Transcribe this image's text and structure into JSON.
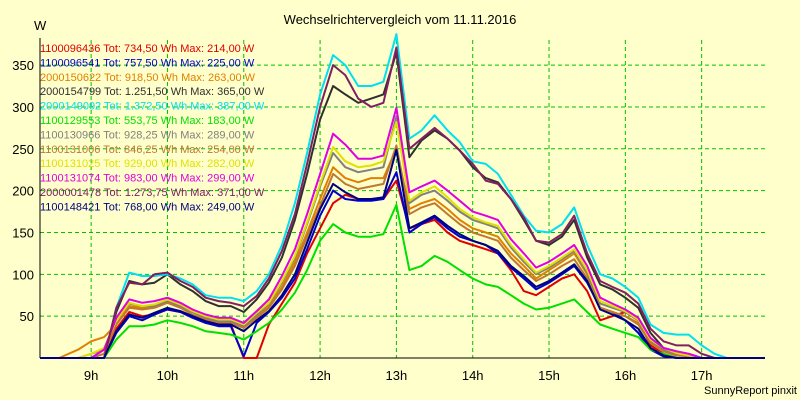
{
  "chart_data": {
    "type": "line",
    "title": "Wechselrichtervergleich vom 11.11.2016",
    "ylabel": "W",
    "footer": "SunnyReport pinxit",
    "ylim": [
      0,
      380
    ],
    "xlim": [
      8.33,
      17.83
    ],
    "grid": true,
    "legend_position": "top-left",
    "x_ticks": [
      {
        "value": 9,
        "label": "9h"
      },
      {
        "value": 10,
        "label": "10h"
      },
      {
        "value": 11,
        "label": "11h"
      },
      {
        "value": 12,
        "label": "12h"
      },
      {
        "value": 13,
        "label": "13h"
      },
      {
        "value": 14,
        "label": "14h"
      },
      {
        "value": 15,
        "label": "15h"
      },
      {
        "value": 16,
        "label": "16h"
      },
      {
        "value": 17,
        "label": "17h"
      }
    ],
    "y_ticks": [
      {
        "value": 50,
        "label": "50"
      },
      {
        "value": 100,
        "label": "100"
      },
      {
        "value": 150,
        "label": "150"
      },
      {
        "value": 200,
        "label": "200"
      },
      {
        "value": 250,
        "label": "250"
      },
      {
        "value": 300,
        "label": "300"
      },
      {
        "value": 350,
        "label": "350"
      }
    ],
    "x": [
      8.33,
      8.58,
      8.83,
      9.0,
      9.17,
      9.33,
      9.5,
      9.67,
      9.83,
      10.0,
      10.17,
      10.33,
      10.5,
      10.67,
      10.83,
      11.0,
      11.17,
      11.33,
      11.5,
      11.67,
      11.83,
      12.0,
      12.17,
      12.33,
      12.5,
      12.67,
      12.83,
      13.0,
      13.17,
      13.33,
      13.5,
      13.67,
      13.83,
      14.0,
      14.17,
      14.33,
      14.5,
      14.67,
      14.83,
      15.0,
      15.17,
      15.33,
      15.5,
      15.67,
      15.83,
      16.0,
      16.17,
      16.33,
      16.5,
      16.67,
      16.83,
      17.0,
      17.17,
      17.33,
      17.5,
      17.67,
      17.83
    ],
    "series": [
      {
        "name": "1100096436",
        "legend": "1100096436 Tot: 734,50 Wh Max: 214,00 W",
        "color": "#e00000",
        "values": [
          0,
          0,
          0,
          0,
          0,
          35,
          55,
          50,
          52,
          58,
          55,
          50,
          42,
          40,
          40,
          0,
          0,
          40,
          65,
          90,
          125,
          155,
          185,
          195,
          190,
          190,
          190,
          212,
          155,
          160,
          165,
          150,
          140,
          135,
          130,
          125,
          105,
          80,
          75,
          85,
          95,
          100,
          80,
          45,
          50,
          55,
          45,
          15,
          5,
          0,
          0,
          0,
          0,
          0,
          0,
          0,
          0
        ]
      },
      {
        "name": "1100096541",
        "legend": "1100096541 Tot: 757,50 Wh Max: 225,00 W",
        "color": "#0000cc",
        "values": [
          0,
          0,
          0,
          0,
          0,
          30,
          50,
          45,
          52,
          58,
          55,
          48,
          42,
          38,
          38,
          2,
          42,
          55,
          72,
          95,
          130,
          170,
          200,
          190,
          188,
          188,
          190,
          222,
          150,
          160,
          168,
          155,
          145,
          140,
          135,
          125,
          108,
          95,
          82,
          90,
          100,
          110,
          90,
          60,
          55,
          45,
          30,
          10,
          2,
          0,
          0,
          0,
          0,
          0,
          0,
          0,
          0
        ]
      },
      {
        "name": "2000150622",
        "legend": "2000150622 Tot: 918,50 Wh Max: 263,00 W",
        "color": "#e08000",
        "values": [
          0,
          0,
          10,
          20,
          25,
          40,
          62,
          60,
          62,
          68,
          62,
          55,
          48,
          44,
          44,
          38,
          50,
          62,
          85,
          115,
          150,
          190,
          228,
          215,
          210,
          215,
          215,
          250,
          178,
          185,
          190,
          178,
          165,
          155,
          150,
          145,
          125,
          110,
          95,
          105,
          115,
          125,
          100,
          60,
          55,
          50,
          42,
          20,
          10,
          5,
          3,
          0,
          0,
          0,
          0,
          0,
          0
        ]
      },
      {
        "name": "2000154799",
        "legend": "2000154799 Tot: 1.251,50 Wh Max: 365,00 W",
        "color": "#303030",
        "values": [
          0,
          0,
          0,
          0,
          0,
          55,
          92,
          88,
          90,
          100,
          88,
          80,
          68,
          62,
          62,
          55,
          70,
          90,
          120,
          165,
          220,
          285,
          325,
          315,
          305,
          310,
          315,
          365,
          240,
          260,
          272,
          262,
          248,
          228,
          215,
          210,
          190,
          165,
          140,
          135,
          145,
          165,
          120,
          88,
          82,
          72,
          60,
          30,
          12,
          8,
          5,
          0,
          0,
          0,
          0,
          0,
          0
        ]
      },
      {
        "name": "2000149092",
        "legend": "2000149092 Tot: 1.372,50 Wh Max: 387,00 W",
        "color": "#00e0f0",
        "values": [
          0,
          0,
          0,
          0,
          0,
          60,
          102,
          98,
          98,
          100,
          95,
          88,
          75,
          72,
          72,
          68,
          80,
          100,
          135,
          185,
          245,
          315,
          362,
          350,
          325,
          325,
          330,
          387,
          262,
          272,
          290,
          272,
          258,
          235,
          232,
          220,
          195,
          170,
          152,
          150,
          160,
          180,
          135,
          100,
          95,
          85,
          72,
          40,
          30,
          28,
          28,
          15,
          5,
          0,
          0,
          0,
          0
        ]
      },
      {
        "name": "1100129553",
        "legend": "1100129553 Tot: 553,75 Wh Max: 183,00 W",
        "color": "#00e000",
        "values": [
          0,
          0,
          0,
          0,
          0,
          22,
          38,
          38,
          40,
          45,
          42,
          38,
          32,
          30,
          28,
          22,
          32,
          42,
          58,
          78,
          105,
          140,
          160,
          150,
          145,
          145,
          148,
          183,
          105,
          110,
          122,
          115,
          105,
          95,
          88,
          85,
          75,
          65,
          58,
          60,
          65,
          70,
          55,
          40,
          35,
          30,
          25,
          10,
          5,
          0,
          0,
          0,
          0,
          0,
          0,
          0,
          0
        ]
      },
      {
        "name": "1100130966",
        "legend": "1100130966 Tot: 928,25 Wh Max: 289,00 W",
        "color": "#808080",
        "values": [
          0,
          0,
          0,
          5,
          10,
          45,
          65,
          62,
          62,
          68,
          62,
          55,
          48,
          44,
          44,
          38,
          52,
          65,
          90,
          120,
          160,
          205,
          245,
          228,
          222,
          225,
          228,
          289,
          185,
          195,
          200,
          188,
          175,
          165,
          160,
          155,
          132,
          115,
          100,
          108,
          118,
          128,
          102,
          65,
          60,
          55,
          45,
          20,
          10,
          5,
          3,
          0,
          0,
          0,
          0,
          0,
          0
        ]
      },
      {
        "name": "1100131006",
        "legend": "1100131006 Tot: 846,25 Wh Max: 254,00 W",
        "color": "#c07830",
        "values": [
          0,
          0,
          0,
          0,
          5,
          40,
          60,
          58,
          60,
          66,
          60,
          52,
          46,
          42,
          42,
          36,
          48,
          60,
          82,
          110,
          145,
          182,
          220,
          208,
          202,
          205,
          208,
          254,
          172,
          180,
          185,
          172,
          160,
          150,
          145,
          140,
          120,
          105,
          92,
          100,
          110,
          118,
          95,
          60,
          55,
          50,
          40,
          18,
          8,
          3,
          2,
          0,
          0,
          0,
          0,
          0,
          0
        ]
      },
      {
        "name": "1100131025",
        "legend": "1100131025 Tot: 929,00 Wh Max: 282,00 W",
        "color": "#e0e000",
        "values": [
          0,
          0,
          0,
          5,
          12,
          45,
          66,
          62,
          64,
          70,
          64,
          56,
          50,
          46,
          46,
          40,
          54,
          66,
          92,
          122,
          162,
          208,
          252,
          235,
          228,
          230,
          235,
          282,
          188,
          198,
          205,
          192,
          178,
          168,
          162,
          158,
          135,
          118,
          102,
          110,
          120,
          130,
          105,
          68,
          62,
          56,
          46,
          22,
          12,
          6,
          3,
          0,
          0,
          0,
          0,
          0,
          0
        ]
      },
      {
        "name": "1100131074",
        "legend": "1100131074 Tot: 983,00 Wh Max: 299,00 W",
        "color": "#e000e0",
        "values": [
          0,
          0,
          0,
          0,
          10,
          48,
          70,
          66,
          68,
          72,
          66,
          58,
          52,
          48,
          48,
          42,
          56,
          70,
          98,
          130,
          172,
          220,
          268,
          255,
          238,
          238,
          242,
          299,
          198,
          205,
          212,
          200,
          188,
          175,
          170,
          165,
          142,
          125,
          108,
          115,
          125,
          135,
          110,
          72,
          65,
          58,
          48,
          24,
          12,
          8,
          5,
          0,
          0,
          0,
          0,
          0,
          0
        ]
      },
      {
        "name": "2000001478",
        "legend": "2000001478 Tot: 1.273,75 Wh Max: 371,00 W",
        "color": "#802060",
        "values": [
          0,
          0,
          0,
          0,
          0,
          60,
          90,
          88,
          100,
          102,
          92,
          85,
          72,
          68,
          66,
          62,
          74,
          95,
          128,
          172,
          232,
          300,
          350,
          338,
          310,
          300,
          305,
          371,
          250,
          262,
          275,
          262,
          248,
          232,
          212,
          208,
          190,
          168,
          140,
          138,
          148,
          170,
          125,
          92,
          85,
          78,
          65,
          35,
          20,
          15,
          15,
          5,
          0,
          0,
          0,
          0,
          0
        ]
      },
      {
        "name": "1100148421",
        "legend": "1100148421 Tot: 768,00 Wh Max: 249,00 W",
        "color": "#000080",
        "values": [
          0,
          0,
          0,
          0,
          0,
          32,
          52,
          48,
          54,
          60,
          56,
          50,
          44,
          40,
          40,
          32,
          45,
          56,
          75,
          100,
          138,
          178,
          208,
          198,
          190,
          190,
          192,
          249,
          155,
          162,
          170,
          158,
          148,
          140,
          135,
          128,
          110,
          98,
          85,
          92,
          102,
          112,
          92,
          58,
          52,
          45,
          35,
          12,
          3,
          0,
          0,
          0,
          0,
          0,
          0,
          0,
          0
        ]
      }
    ]
  }
}
